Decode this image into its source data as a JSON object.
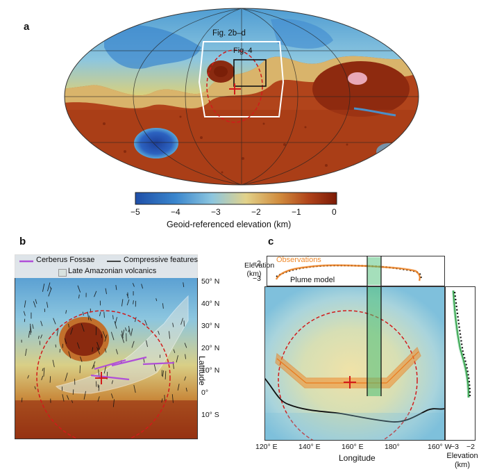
{
  "panel_a": {
    "letter": "a",
    "box_large_label": "Fig. 2b–d",
    "box_small_label": "Fig. 4",
    "colorbar": {
      "ticks": [
        "−5",
        "−4",
        "−3",
        "−2",
        "−1",
        "0"
      ],
      "label": "Geoid-referenced elevation (km)",
      "range": [
        -5,
        0
      ]
    }
  },
  "panel_b": {
    "letter": "b",
    "legend": {
      "cerberus": "Cerberus Fossae",
      "compressive": "Compressive features",
      "volcanics": "Late Amazonian volcanics"
    },
    "lat_ticks": [
      "50° N",
      "40° N",
      "30° N",
      "20° N",
      "10° N",
      "0°",
      "10° S"
    ],
    "axis_label": "Latitude"
  },
  "panel_c": {
    "letter": "c",
    "profile_top": {
      "y_label": "Elevation (km)",
      "y_ticks": [
        "−2",
        "−3"
      ],
      "observations_label": "Observations",
      "model_label": "Plume model"
    },
    "lon_ticks": [
      "120° E",
      "140° E",
      "160° E",
      "180°",
      "160° W"
    ],
    "x_label": "Longitude",
    "profile_right": {
      "x_ticks": [
        "−3",
        "−2"
      ],
      "x_label": "Elevation (km)"
    }
  },
  "colors": {
    "low": "#1f4fa8",
    "mid": "#e2d28a",
    "high": "#8c1f08",
    "observations": "#f08a2c",
    "plume_model": "#111111",
    "right_profile": "#3aa53a",
    "circle": "#d21a1a"
  }
}
